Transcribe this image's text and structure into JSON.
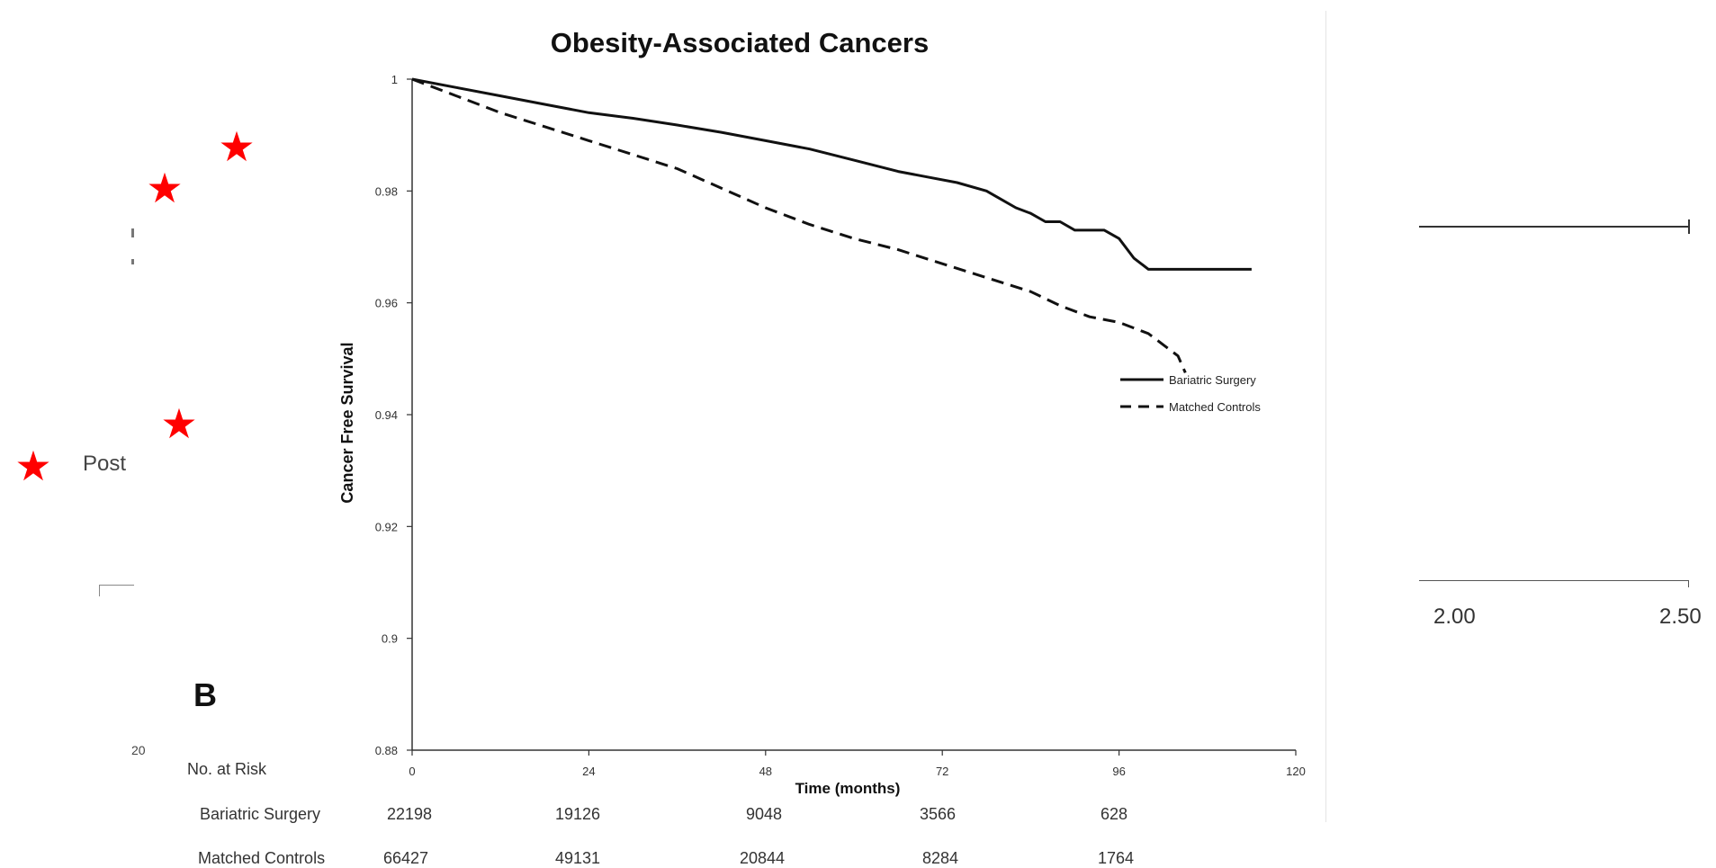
{
  "panel_label": "B",
  "left_fragments": {
    "post_text": "Post",
    "tick_text": "20"
  },
  "right_fragments": {
    "tick_labels": [
      "2.00",
      "2.50"
    ]
  },
  "chart_data": {
    "type": "line",
    "title": "Obesity-Associated Cancers",
    "xlabel": "Time (months)",
    "ylabel": "Cancer Free Survival",
    "xlim": [
      0,
      120
    ],
    "ylim": [
      0.88,
      1
    ],
    "x_ticks": [
      0,
      24,
      48,
      72,
      96,
      120
    ],
    "y_ticks": [
      0.88,
      0.9,
      0.92,
      0.94,
      0.96,
      0.98,
      1
    ],
    "y_tick_labels": [
      "0.88",
      "0.9",
      "0.92",
      "0.94",
      "0.96",
      "0.98",
      "1"
    ],
    "legend_position": "right",
    "series": [
      {
        "name": "Bariatric Surgery",
        "style": "solid",
        "x": [
          0,
          6,
          12,
          18,
          24,
          30,
          36,
          42,
          48,
          54,
          60,
          66,
          70,
          74,
          78,
          80,
          82,
          84,
          86,
          88,
          90,
          92,
          94,
          96,
          98,
          100,
          102,
          108,
          114
        ],
        "y": [
          1.0,
          0.9985,
          0.997,
          0.9955,
          0.994,
          0.993,
          0.9918,
          0.9905,
          0.989,
          0.9875,
          0.9855,
          0.9835,
          0.9825,
          0.9815,
          0.98,
          0.9785,
          0.977,
          0.976,
          0.9745,
          0.9745,
          0.973,
          0.973,
          0.973,
          0.9715,
          0.968,
          0.966,
          0.966,
          0.966,
          0.966
        ]
      },
      {
        "name": "Matched Controls",
        "style": "dashed",
        "x": [
          0,
          6,
          12,
          18,
          24,
          30,
          36,
          42,
          48,
          54,
          60,
          66,
          72,
          78,
          84,
          88,
          92,
          96,
          100,
          102,
          104,
          105
        ],
        "y": [
          1.0,
          0.997,
          0.994,
          0.9915,
          0.989,
          0.9865,
          0.984,
          0.9805,
          0.977,
          0.974,
          0.9715,
          0.9695,
          0.967,
          0.9645,
          0.962,
          0.9595,
          0.9575,
          0.9565,
          0.9545,
          0.9525,
          0.9505,
          0.9475
        ]
      }
    ]
  },
  "risk_table": {
    "header": "No. at Risk",
    "rows": [
      {
        "label": "Bariatric Surgery",
        "values": [
          "22198",
          "19126",
          "9048",
          "3566",
          "628"
        ]
      },
      {
        "label": "Matched Controls",
        "values": [
          "66427",
          "49131",
          "20844",
          "8284",
          "1764"
        ]
      }
    ]
  },
  "colors": {
    "star": "#ff0000",
    "line": "#111111"
  }
}
